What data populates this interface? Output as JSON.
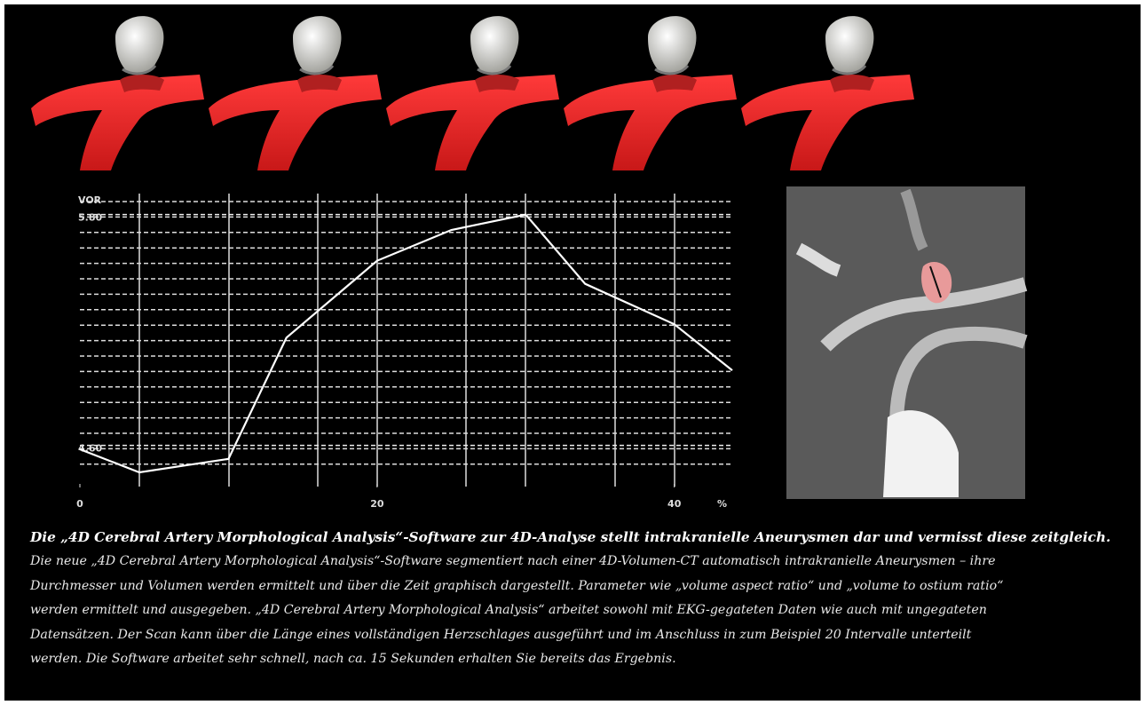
{
  "chart_data": {
    "type": "line",
    "y_label": "VOR",
    "x_label": "%",
    "x": [
      0,
      4,
      10,
      13.9,
      20,
      25,
      30,
      34,
      40,
      43.9
    ],
    "series": [
      {
        "color": "#ffffff",
        "values": [
          4.58,
          4.46,
          4.53,
          5.16,
          5.56,
          5.72,
          5.8,
          5.44,
          5.23,
          4.99
        ]
      }
    ],
    "xlim": [
      0,
      43.9
    ],
    "ylim": [
      4.4,
      5.9
    ],
    "xticks": [
      0,
      20,
      40
    ],
    "yticks": [
      {
        "value": 4.6,
        "label": "4.60"
      },
      {
        "value": 5.8,
        "label": "5.80"
      }
    ]
  },
  "caption": {
    "title": "Die „4D Cerebral Artery Morphological Analysis“-Software zur 4D-Analyse stellt intrakranielle Aneurysmen dar und vermisst diese zeitgleich.",
    "lines": [
      "Die neue „4D Cerebral Artery Morphological Analysis“-Software segmentiert nach einer 4D-Volumen-CT automatisch intrakranielle Aneurysmen – ihre",
      "Durchmesser und Volumen werden ermittelt und über die Zeit graphisch dargestellt. Parameter wie „volume aspect ratio“ und „volume to ostium ratio“",
      "werden ermittelt und ausgegeben. „4D Cerebral Artery Morphological Analysis“ arbeitet sowohl mit EKG-gegateten Daten wie auch mit ungegateten",
      "Datensätzen. Der Scan kann über die Länge eines vollständigen Herzschlages ausgeführt und im Anschluss in zum Beispiel 20 Intervalle unterteilt",
      "werden. Die Software arbeitet sehr schnell, nach ca. 15 Sekunden erhalten Sie bereits das Ergebnis."
    ]
  }
}
